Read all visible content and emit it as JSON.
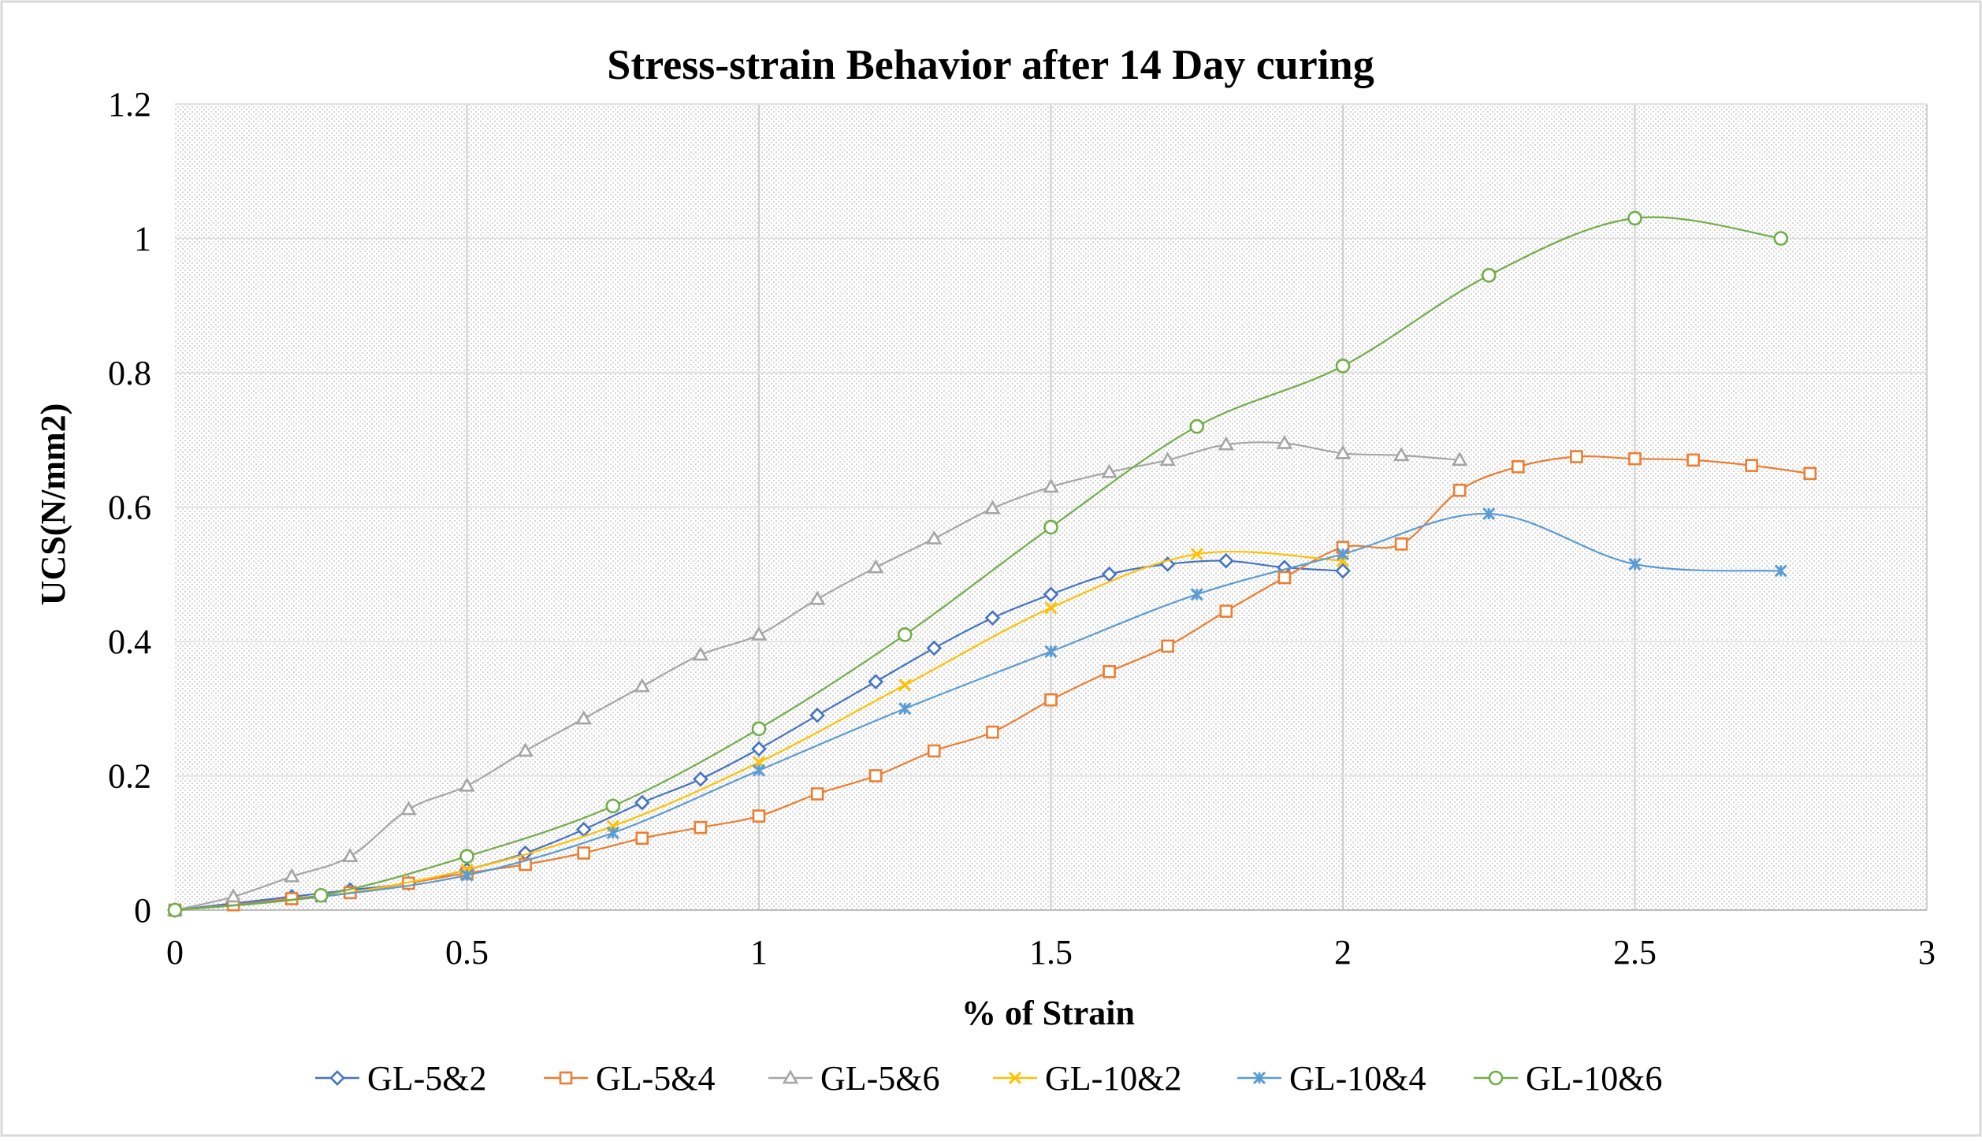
{
  "chart_data": {
    "type": "line",
    "title": "Stress-strain Behavior after 14 Day curing",
    "xlabel": "% of Strain",
    "ylabel": "UCS(N/mm2)",
    "xlim": [
      0,
      3
    ],
    "ylim": [
      0,
      1.2
    ],
    "x_ticks": [
      "0",
      "0.5",
      "1",
      "1.5",
      "2",
      "2.5",
      "3"
    ],
    "y_ticks": [
      "0",
      "0.2",
      "0.4",
      "0.6",
      "0.8",
      "1",
      "1.2"
    ],
    "grid": true,
    "legend_position": "bottom",
    "series": [
      {
        "name": "GL-5&2",
        "color": "#4472C4",
        "marker": "diamond",
        "points": [
          [
            0,
            0
          ],
          [
            0.1,
            0.01
          ],
          [
            0.2,
            0.02
          ],
          [
            0.3,
            0.03
          ],
          [
            0.4,
            0.04
          ],
          [
            0.5,
            0.06
          ],
          [
            0.6,
            0.085
          ],
          [
            0.7,
            0.12
          ],
          [
            0.8,
            0.16
          ],
          [
            0.9,
            0.195
          ],
          [
            1.0,
            0.24
          ],
          [
            1.1,
            0.29
          ],
          [
            1.2,
            0.34
          ],
          [
            1.3,
            0.39
          ],
          [
            1.4,
            0.435
          ],
          [
            1.5,
            0.47
          ],
          [
            1.6,
            0.5
          ],
          [
            1.7,
            0.515
          ],
          [
            1.8,
            0.52
          ],
          [
            1.9,
            0.51
          ],
          [
            2.0,
            0.505
          ]
        ]
      },
      {
        "name": "GL-5&4",
        "color": "#ED7D31",
        "marker": "square",
        "points": [
          [
            0,
            0
          ],
          [
            0.1,
            0.008
          ],
          [
            0.2,
            0.017
          ],
          [
            0.3,
            0.026
          ],
          [
            0.4,
            0.04
          ],
          [
            0.5,
            0.055
          ],
          [
            0.6,
            0.068
          ],
          [
            0.7,
            0.085
          ],
          [
            0.8,
            0.107
          ],
          [
            0.9,
            0.123
          ],
          [
            1.0,
            0.14
          ],
          [
            1.1,
            0.173
          ],
          [
            1.2,
            0.2
          ],
          [
            1.3,
            0.237
          ],
          [
            1.4,
            0.265
          ],
          [
            1.5,
            0.313
          ],
          [
            1.6,
            0.355
          ],
          [
            1.7,
            0.393
          ],
          [
            1.8,
            0.445
          ],
          [
            1.9,
            0.495
          ],
          [
            2.0,
            0.54
          ],
          [
            2.1,
            0.545
          ],
          [
            2.2,
            0.625
          ],
          [
            2.3,
            0.66
          ],
          [
            2.4,
            0.675
          ],
          [
            2.5,
            0.672
          ],
          [
            2.6,
            0.67
          ],
          [
            2.7,
            0.662
          ],
          [
            2.8,
            0.65
          ]
        ]
      },
      {
        "name": "GL-5&6",
        "color": "#A5A5A5",
        "marker": "triangle",
        "points": [
          [
            0,
            0
          ],
          [
            0.1,
            0.02
          ],
          [
            0.2,
            0.05
          ],
          [
            0.3,
            0.08
          ],
          [
            0.4,
            0.15
          ],
          [
            0.5,
            0.185
          ],
          [
            0.6,
            0.237
          ],
          [
            0.7,
            0.285
          ],
          [
            0.8,
            0.333
          ],
          [
            0.9,
            0.38
          ],
          [
            1.0,
            0.41
          ],
          [
            1.1,
            0.463
          ],
          [
            1.2,
            0.51
          ],
          [
            1.3,
            0.553
          ],
          [
            1.4,
            0.598
          ],
          [
            1.5,
            0.63
          ],
          [
            1.6,
            0.652
          ],
          [
            1.7,
            0.67
          ],
          [
            1.8,
            0.693
          ],
          [
            1.9,
            0.695
          ],
          [
            2.0,
            0.68
          ],
          [
            2.1,
            0.677
          ],
          [
            2.2,
            0.67
          ]
        ]
      },
      {
        "name": "GL-10&2",
        "color": "#FFC000",
        "marker": "x",
        "points": [
          [
            0,
            0
          ],
          [
            0.25,
            0.02
          ],
          [
            0.5,
            0.06
          ],
          [
            0.75,
            0.125
          ],
          [
            1.0,
            0.22
          ],
          [
            1.25,
            0.335
          ],
          [
            1.5,
            0.45
          ],
          [
            1.75,
            0.53
          ],
          [
            2.0,
            0.52
          ]
        ]
      },
      {
        "name": "GL-10&4",
        "color": "#5B9BD5",
        "marker": "star",
        "points": [
          [
            0,
            0
          ],
          [
            0.25,
            0.02
          ],
          [
            0.5,
            0.052
          ],
          [
            0.75,
            0.115
          ],
          [
            1.0,
            0.208
          ],
          [
            1.25,
            0.3
          ],
          [
            1.5,
            0.385
          ],
          [
            1.75,
            0.47
          ],
          [
            2.0,
            0.53
          ],
          [
            2.25,
            0.59
          ],
          [
            2.5,
            0.515
          ],
          [
            2.75,
            0.505
          ]
        ]
      },
      {
        "name": "GL-10&6",
        "color": "#70AD47",
        "marker": "circle",
        "points": [
          [
            0,
            0
          ],
          [
            0.25,
            0.022
          ],
          [
            0.5,
            0.08
          ],
          [
            0.75,
            0.155
          ],
          [
            1.0,
            0.27
          ],
          [
            1.25,
            0.41
          ],
          [
            1.5,
            0.57
          ],
          [
            1.75,
            0.72
          ],
          [
            2.0,
            0.81
          ],
          [
            2.25,
            0.945
          ],
          [
            2.5,
            1.03
          ],
          [
            2.75,
            1.0
          ]
        ]
      }
    ]
  }
}
